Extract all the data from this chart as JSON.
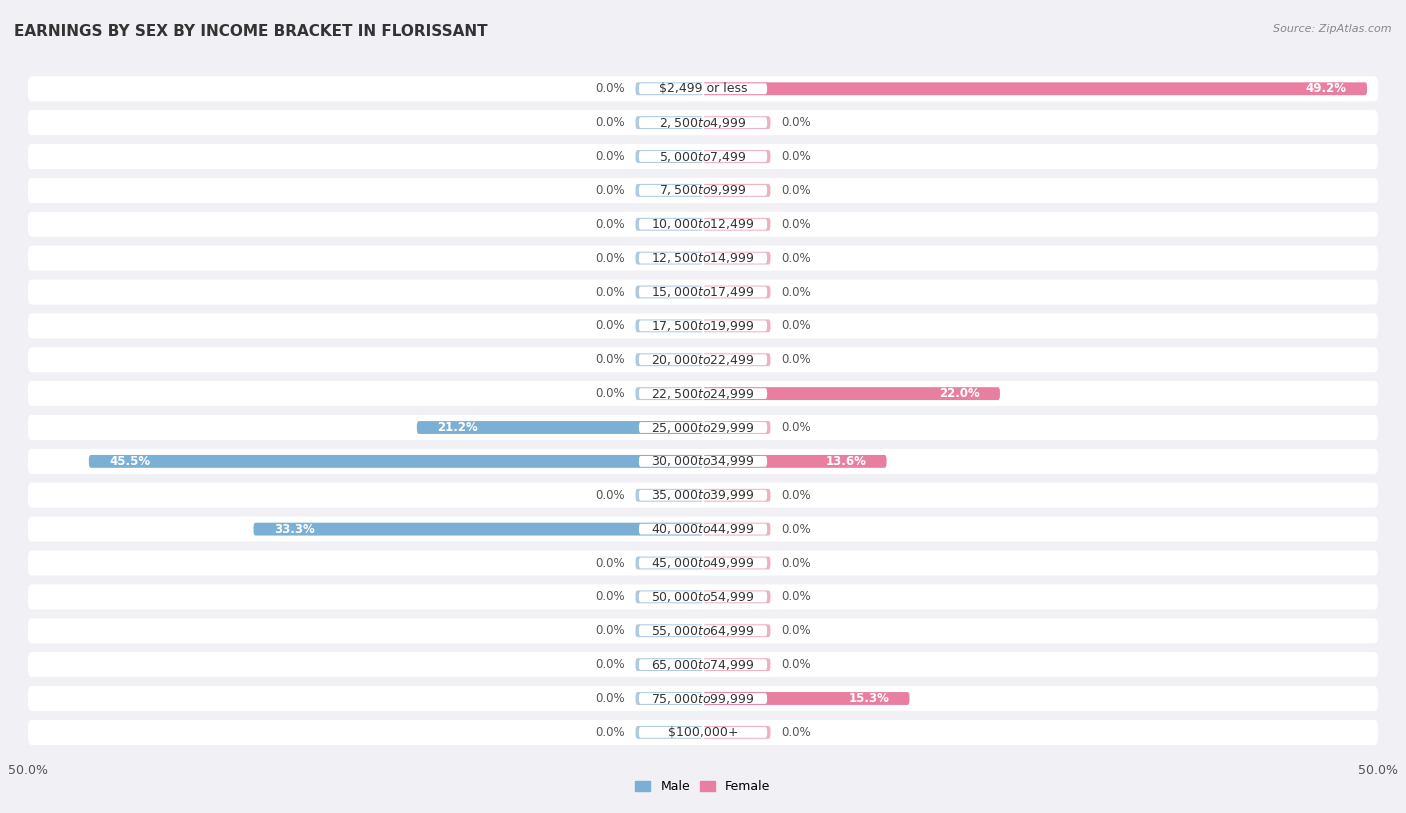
{
  "title": "EARNINGS BY SEX BY INCOME BRACKET IN FLORISSANT",
  "source_text": "Source: ZipAtlas.com",
  "categories": [
    "$2,499 or less",
    "$2,500 to $4,999",
    "$5,000 to $7,499",
    "$7,500 to $9,999",
    "$10,000 to $12,499",
    "$12,500 to $14,999",
    "$15,000 to $17,499",
    "$17,500 to $19,999",
    "$20,000 to $22,499",
    "$22,500 to $24,999",
    "$25,000 to $29,999",
    "$30,000 to $34,999",
    "$35,000 to $39,999",
    "$40,000 to $44,999",
    "$45,000 to $49,999",
    "$50,000 to $54,999",
    "$55,000 to $64,999",
    "$65,000 to $74,999",
    "$75,000 to $99,999",
    "$100,000+"
  ],
  "male_values": [
    0.0,
    0.0,
    0.0,
    0.0,
    0.0,
    0.0,
    0.0,
    0.0,
    0.0,
    0.0,
    21.2,
    45.5,
    0.0,
    33.3,
    0.0,
    0.0,
    0.0,
    0.0,
    0.0,
    0.0
  ],
  "female_values": [
    49.2,
    0.0,
    0.0,
    0.0,
    0.0,
    0.0,
    0.0,
    0.0,
    0.0,
    22.0,
    0.0,
    13.6,
    0.0,
    0.0,
    0.0,
    0.0,
    0.0,
    0.0,
    15.3,
    0.0
  ],
  "male_color": "#7bafd4",
  "female_color": "#e87fa0",
  "male_color_light": "#aec9e0",
  "female_color_light": "#f0b0c0",
  "male_label": "Male",
  "female_label": "Female",
  "xlim": 50.0,
  "background_color": "#f0f0f5",
  "row_bg_color": "#ffffff",
  "title_fontsize": 11,
  "axis_fontsize": 9,
  "label_fontsize": 8.5,
  "category_fontsize": 9,
  "stub_size": 5.0,
  "label_min_inside_threshold": 5.0
}
